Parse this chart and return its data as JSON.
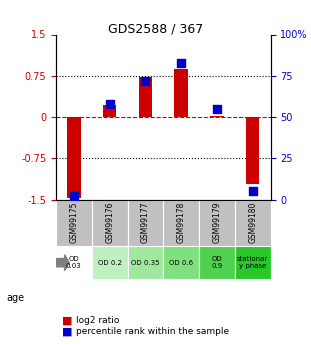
{
  "title": "GDS2588 / 367",
  "samples": [
    "GSM99175",
    "GSM99176",
    "GSM99177",
    "GSM99178",
    "GSM99179",
    "GSM99180"
  ],
  "log2_ratio": [
    -1.48,
    0.21,
    0.72,
    0.87,
    0.02,
    -1.22
  ],
  "percentile_rank": [
    2.0,
    58.0,
    72.0,
    83.0,
    55.0,
    5.0
  ],
  "age_labels": [
    "OD\n0.03",
    "OD 0.2",
    "OD 0.35",
    "OD 0.6",
    "OD\n0.9",
    "stationar\ny phase"
  ],
  "age_colors": [
    "#ffffff",
    "#c0f0c0",
    "#a0e8a0",
    "#80e080",
    "#50d050",
    "#28c828"
  ],
  "ylim_left": [
    -1.5,
    1.5
  ],
  "ylim_right": [
    0,
    100
  ],
  "yticks_left": [
    -1.5,
    -0.75,
    0,
    0.75,
    1.5
  ],
  "ytick_labels_left": [
    "-1.5",
    "-0.75",
    "0",
    "0.75",
    "1.5"
  ],
  "yticks_right": [
    0,
    25,
    50,
    75,
    100
  ],
  "ytick_labels_right": [
    "0",
    "25",
    "50",
    "75",
    "100%"
  ],
  "bar_color": "#cc0000",
  "dot_color": "#0000cc",
  "hline_dotted_vals": [
    0.75,
    -0.75
  ],
  "hline_red_val": 0,
  "sample_label_bg": "#c0c0c0",
  "legend_bar_label": "log2 ratio",
  "legend_dot_label": "percentile rank within the sample"
}
